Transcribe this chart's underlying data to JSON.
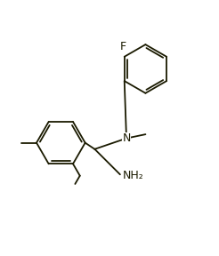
{
  "bg_color": "#ffffff",
  "line_color": "#1a1a00",
  "text_color": "#1a1a00",
  "figsize": [
    2.46,
    2.88
  ],
  "dpi": 100,
  "F_label": "F",
  "N_label": "N",
  "NH2_label": "NH₂"
}
